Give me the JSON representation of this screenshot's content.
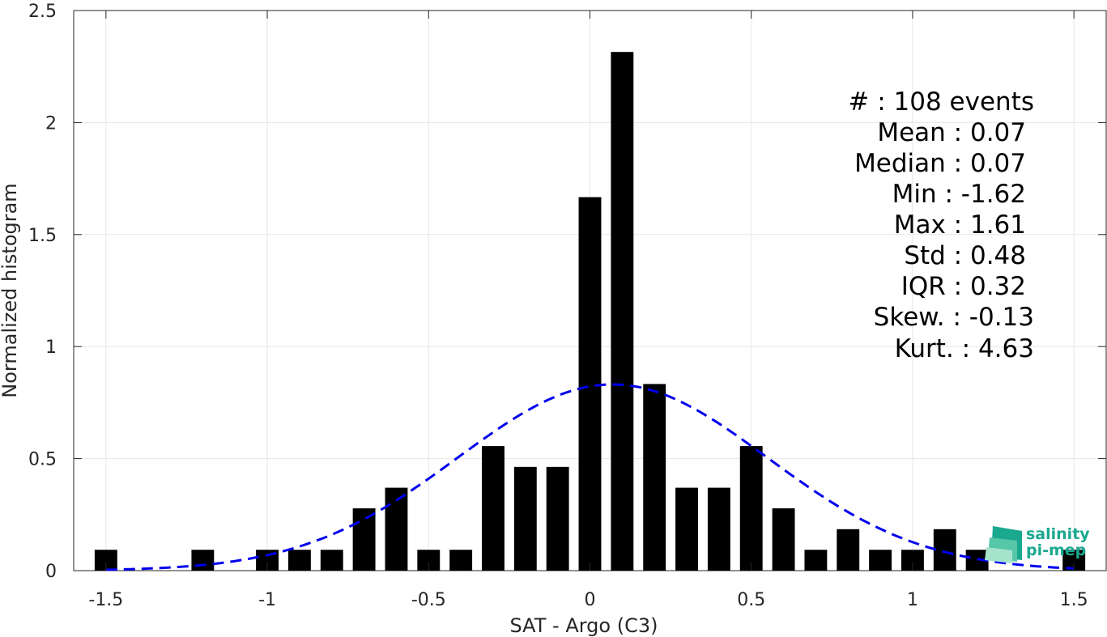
{
  "chart_data": {
    "type": "bar",
    "xlabel": "SAT - Argo (C3)",
    "ylabel": "Normalized histogram",
    "xlim": [
      -1.6,
      1.6
    ],
    "ylim": [
      0,
      2.5
    ],
    "xticks": [
      -1.5,
      -1,
      -0.5,
      0,
      0.5,
      1,
      1.5
    ],
    "xtick_labels": [
      "-1.5",
      "-1",
      "-0.5",
      "0",
      "0.5",
      "1",
      "1.5"
    ],
    "yticks": [
      0,
      0.5,
      1,
      1.5,
      2,
      2.5
    ],
    "ytick_labels": [
      "0",
      "0.5",
      "1",
      "1.5",
      "2",
      "2.5"
    ],
    "grid": true,
    "bar_width": 0.07,
    "bars": [
      {
        "x": -1.5,
        "y": 0.093
      },
      {
        "x": -1.2,
        "y": 0.093
      },
      {
        "x": -1.0,
        "y": 0.093
      },
      {
        "x": -0.9,
        "y": 0.093
      },
      {
        "x": -0.8,
        "y": 0.093
      },
      {
        "x": -0.7,
        "y": 0.278
      },
      {
        "x": -0.6,
        "y": 0.37
      },
      {
        "x": -0.5,
        "y": 0.093
      },
      {
        "x": -0.4,
        "y": 0.093
      },
      {
        "x": -0.3,
        "y": 0.556
      },
      {
        "x": -0.2,
        "y": 0.463
      },
      {
        "x": -0.1,
        "y": 0.463
      },
      {
        "x": 0.0,
        "y": 1.667
      },
      {
        "x": 0.1,
        "y": 2.315
      },
      {
        "x": 0.2,
        "y": 0.833
      },
      {
        "x": 0.3,
        "y": 0.37
      },
      {
        "x": 0.4,
        "y": 0.37
      },
      {
        "x": 0.5,
        "y": 0.556
      },
      {
        "x": 0.6,
        "y": 0.278
      },
      {
        "x": 0.7,
        "y": 0.093
      },
      {
        "x": 0.8,
        "y": 0.185
      },
      {
        "x": 0.9,
        "y": 0.093
      },
      {
        "x": 1.0,
        "y": 0.093
      },
      {
        "x": 1.1,
        "y": 0.185
      },
      {
        "x": 1.2,
        "y": 0.093
      },
      {
        "x": 1.5,
        "y": 0.093
      }
    ],
    "fit_curve": {
      "type": "gaussian",
      "mean": 0.07,
      "std": 0.48,
      "x_range": [
        -1.5,
        1.5
      ],
      "color": "#0000ee",
      "style": "dashed"
    },
    "bar_color": "#000000",
    "stats": [
      "#  : 108 events",
      "Mean : 0.07",
      "Median : 0.07",
      "Min : -1.62",
      "Max : 1.61",
      "Std : 0.48",
      "IQR : 0.32",
      "Skew. : -0.13",
      "Kurt. : 4.63"
    ]
  },
  "logo": {
    "line1": "salinity",
    "line2": "pi-mep",
    "color": "#1aa88f"
  }
}
